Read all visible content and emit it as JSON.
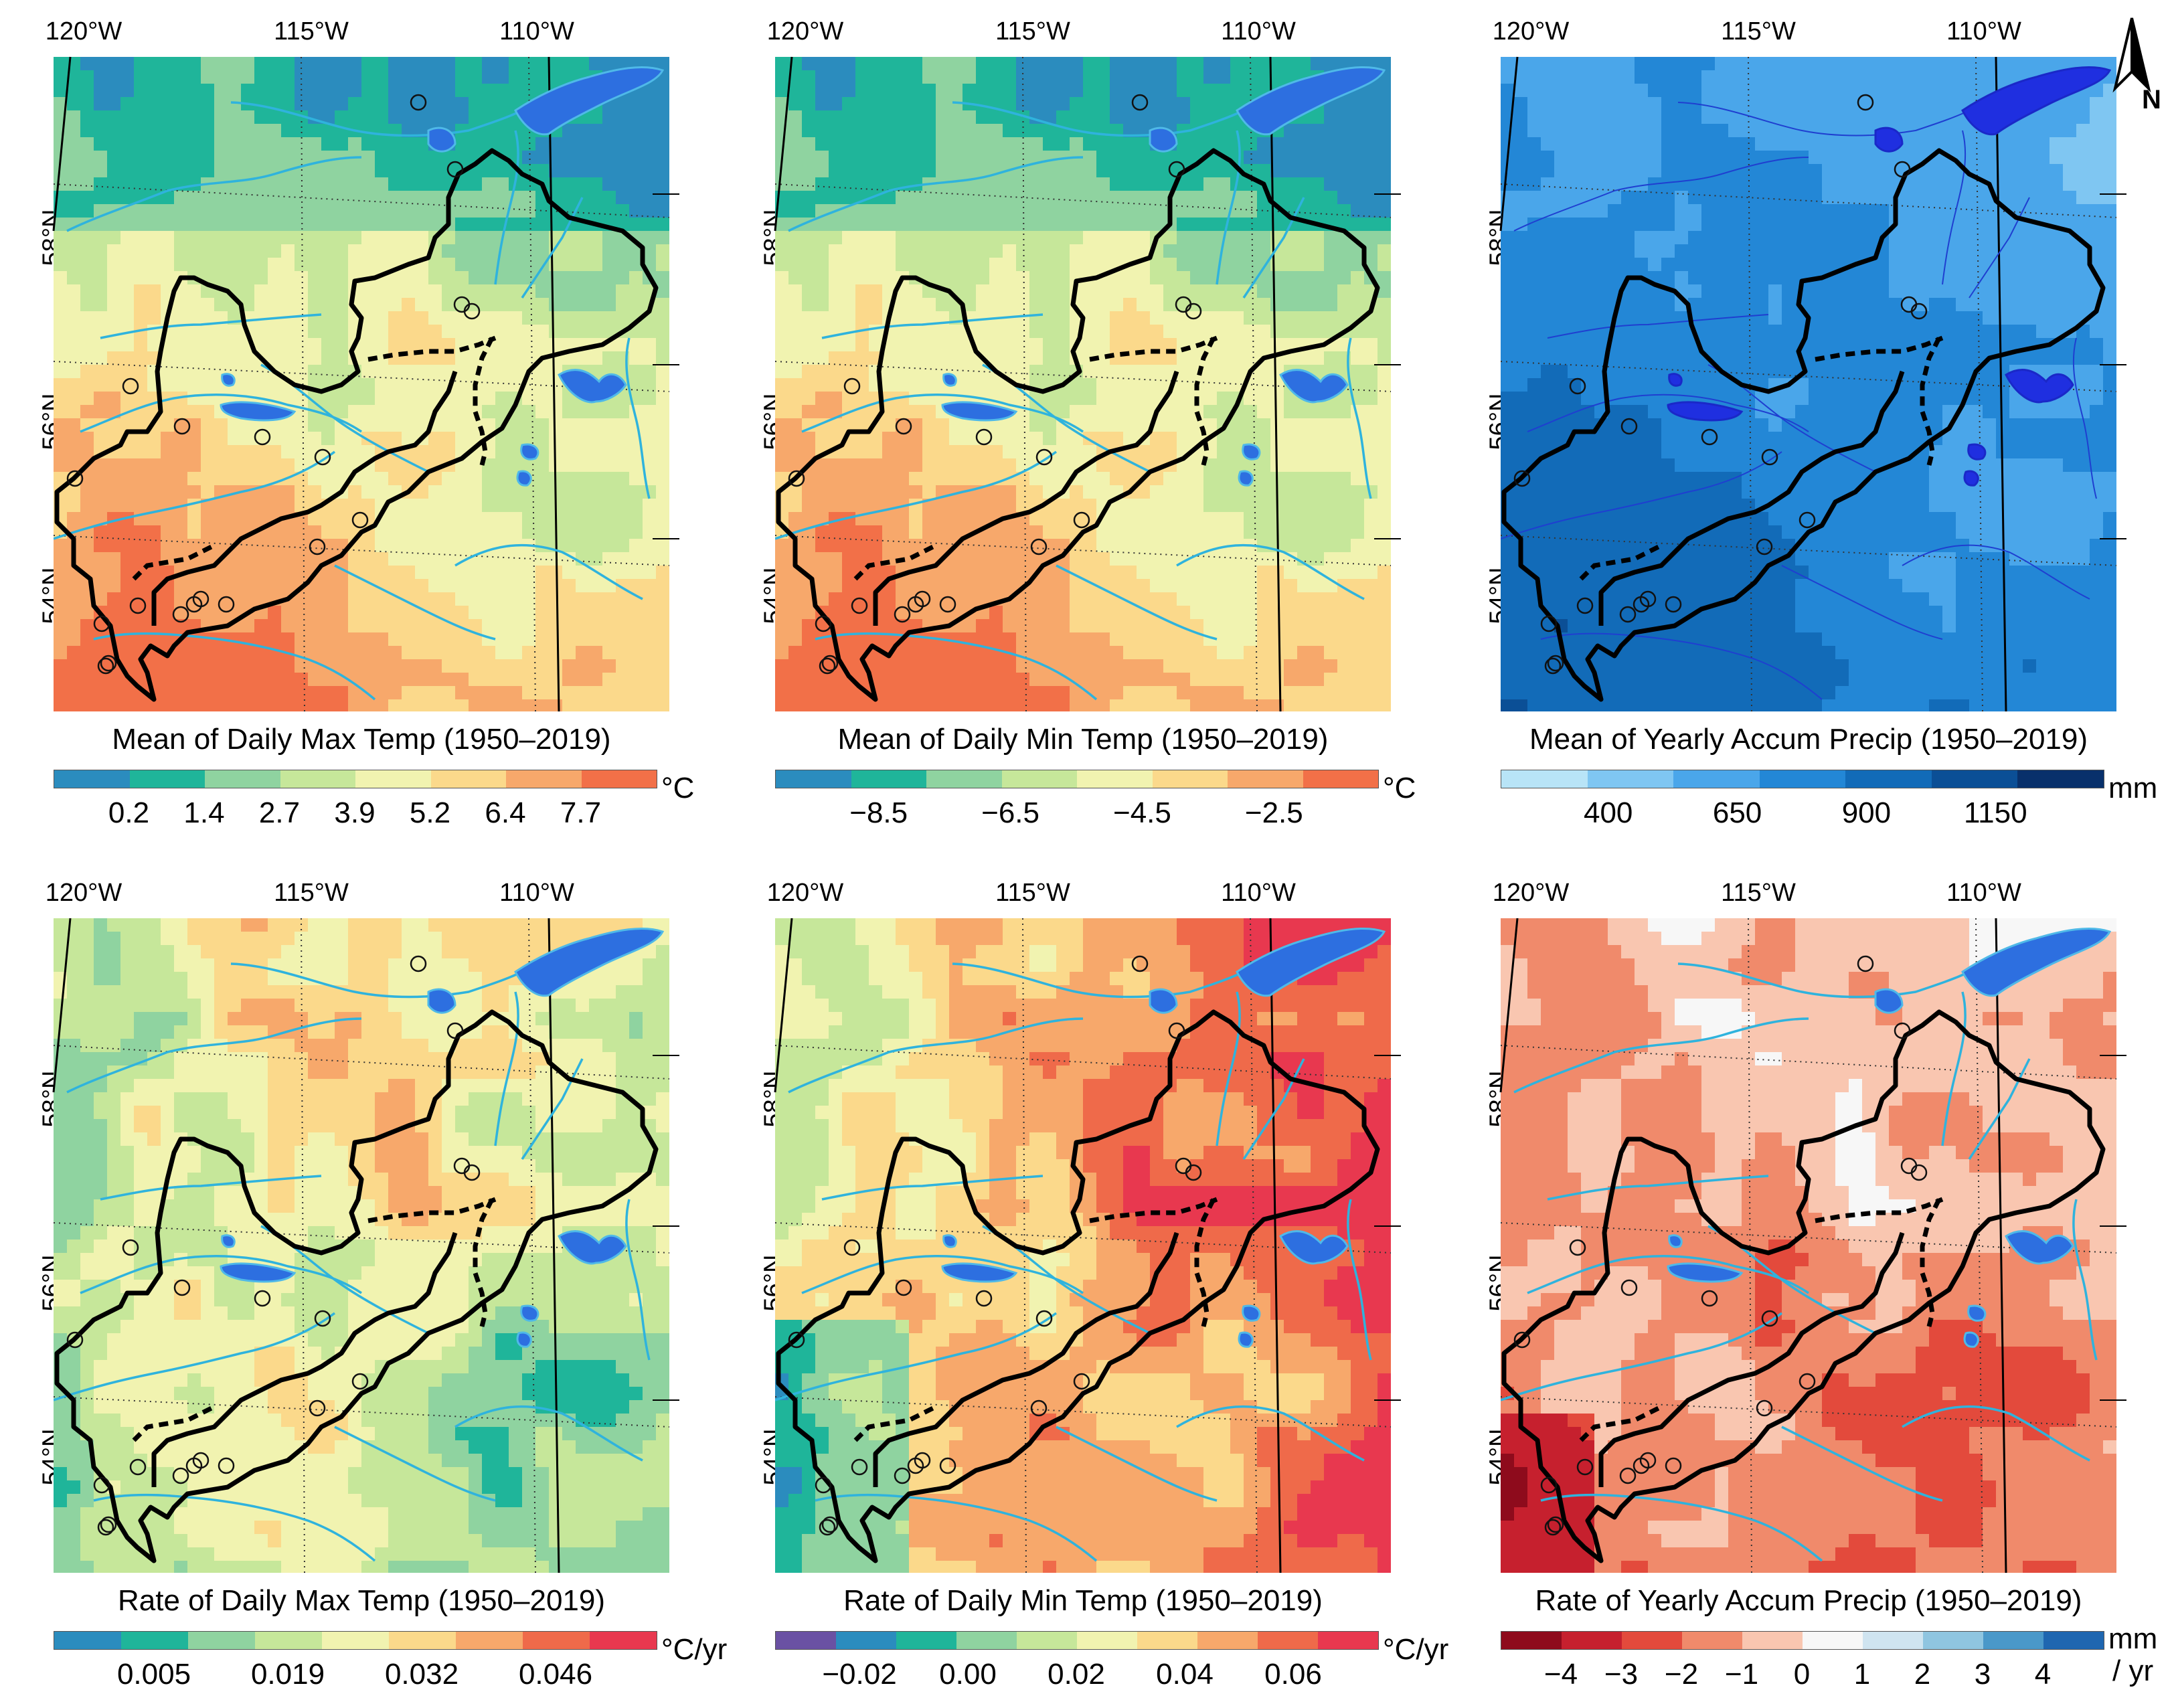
{
  "north_arrow": {
    "label": "N"
  },
  "colors": {
    "river": "#2fb3dd",
    "lake": "#2d6fe0",
    "basin": "#000000",
    "grid": "#333333"
  },
  "panels": [
    {
      "title": "Mean of Daily Max Temp (1950–2019)",
      "lon_labels": [
        "120°W",
        "115°W",
        "110°W"
      ],
      "lat_labels": [
        "58°N",
        "56°N",
        "54°N"
      ],
      "scheme": "temp",
      "colorbar": {
        "colors": [
          "#2b8cbe",
          "#1fb59a",
          "#8fd3a0",
          "#c6e79a",
          "#f1f3b0",
          "#fbd98b",
          "#f7a86b",
          "#f27048"
        ],
        "ticks": [
          "0.2",
          "1.4",
          "2.7",
          "3.9",
          "5.2",
          "6.4",
          "7.7"
        ],
        "unit": "°C"
      }
    },
    {
      "title": "Mean of Daily Min Temp (1950–2019)",
      "lon_labels": [
        "120°W",
        "115°W",
        "110°W"
      ],
      "lat_labels": [
        "58°N",
        "56°N",
        "54°N"
      ],
      "scheme": "temp",
      "colorbar": {
        "colors": [
          "#2b8cbe",
          "#1fb59a",
          "#8fd3a0",
          "#c6e79a",
          "#f1f3b0",
          "#fbd98b",
          "#f7a86b",
          "#f27048"
        ],
        "ticks": [
          "−8.5",
          "−6.5",
          "−4.5",
          "−2.5"
        ],
        "unit": "°C"
      }
    },
    {
      "title": "Mean of Yearly Accum Precip (1950–2019)",
      "lon_labels": [
        "120°W",
        "115°W",
        "110°W"
      ],
      "lat_labels": [
        "58°N",
        "56°N",
        "54°N"
      ],
      "scheme": "precip",
      "colorbar": {
        "colors": [
          "#b8e4f7",
          "#7fc6f2",
          "#4aa6ea",
          "#2387d6",
          "#126bb8",
          "#0b4f96",
          "#08306b"
        ],
        "ticks": [
          "400",
          "650",
          "900",
          "1150"
        ],
        "unit": "mm"
      }
    },
    {
      "title": "Rate of Daily Max Temp (1950–2019)",
      "lon_labels": [
        "120°W",
        "115°W",
        "110°W"
      ],
      "lat_labels": [
        "58°N",
        "56°N",
        "54°N"
      ],
      "scheme": "rate_max",
      "colorbar": {
        "colors": [
          "#2b8cbe",
          "#1fb59a",
          "#8fd3a0",
          "#c6e79a",
          "#f1f3b0",
          "#fbd98b",
          "#f7a86b",
          "#ef6a4a",
          "#e8384f"
        ],
        "ticks": [
          "0.005",
          "0.019",
          "0.032",
          "0.046"
        ],
        "unit": "°C/yr"
      }
    },
    {
      "title": "Rate of Daily Min Temp (1950–2019)",
      "lon_labels": [
        "120°W",
        "115°W",
        "110°W"
      ],
      "lat_labels": [
        "58°N",
        "56°N",
        "54°N"
      ],
      "scheme": "rate_min",
      "colorbar": {
        "colors": [
          "#6a51a3",
          "#2b8cbe",
          "#1fb59a",
          "#8fd3a0",
          "#c6e79a",
          "#f1f3b0",
          "#fbd98b",
          "#f7a86b",
          "#ef6a4a",
          "#e8384f"
        ],
        "ticks": [
          "−0.02",
          "0.00",
          "0.02",
          "0.04",
          "0.06"
        ],
        "unit": "°C/yr"
      }
    },
    {
      "title": "Rate of Yearly Accum Precip (1950–2019)",
      "lon_labels": [
        "120°W",
        "115°W",
        "110°W"
      ],
      "lat_labels": [
        "58°N",
        "56°N",
        "54°N"
      ],
      "scheme": "rate_precip",
      "colorbar": {
        "colors": [
          "#8e0b1c",
          "#c6202e",
          "#e34a3c",
          "#f08a6b",
          "#f9c6b0",
          "#f7f7f7",
          "#cfe4f0",
          "#8fc5e0",
          "#4a98c9",
          "#1f66b0"
        ],
        "ticks": [
          "−4",
          "−3",
          "−2",
          "−1",
          "0",
          "1",
          "2",
          "3",
          "4"
        ],
        "unit_top": "mm",
        "unit_bottom": "/ yr"
      }
    }
  ]
}
